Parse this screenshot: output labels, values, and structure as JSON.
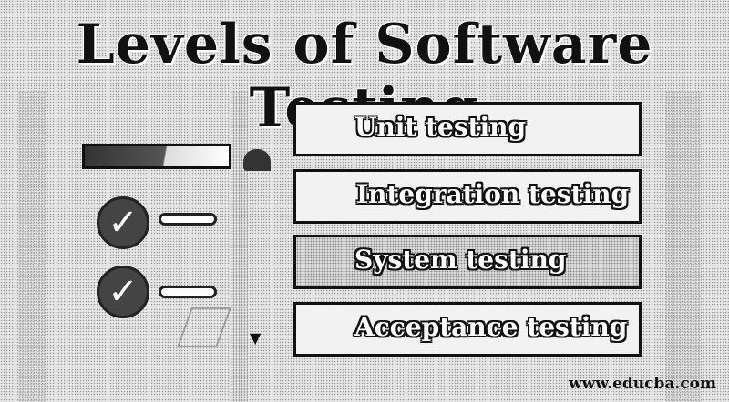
{
  "header": {
    "title": "Levels of Software Testing"
  },
  "levels": [
    {
      "label": "Unit testing"
    },
    {
      "label": "Integration testing"
    },
    {
      "label": "System testing"
    },
    {
      "label": "Acceptance testing"
    }
  ],
  "footer": {
    "site": "www.educba.com"
  },
  "icons": {
    "check": "check-circle-icon",
    "pencil": "pencil-icon",
    "chat": "chat-bubble-icon"
  }
}
